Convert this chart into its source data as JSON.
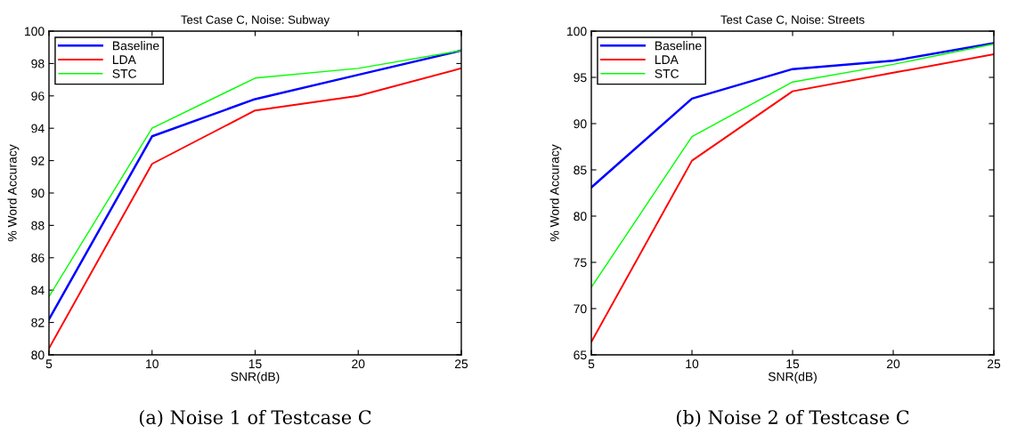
{
  "chart_data": [
    {
      "type": "line",
      "title": "Test Case C, Noise: Subway",
      "xlabel": "SNR(dB)",
      "ylabel": "% Word Accuracy",
      "x": [
        5,
        10,
        15,
        20,
        25
      ],
      "xlim": [
        5,
        25
      ],
      "xticks": [
        5,
        10,
        15,
        20,
        25
      ],
      "ylim": [
        80,
        100
      ],
      "yticks": [
        80,
        82,
        84,
        86,
        88,
        90,
        92,
        94,
        96,
        98,
        100
      ],
      "legend": "top left",
      "grid": false,
      "annotations": [
        "(a) Noise 1 of Testcase C"
      ],
      "series": [
        {
          "name": "Baseline",
          "color": "#0000ff",
          "values": [
            82.2,
            93.5,
            95.8,
            97.3,
            98.8
          ]
        },
        {
          "name": "LDA",
          "color": "#ff0000",
          "values": [
            80.4,
            91.8,
            95.1,
            96.0,
            97.7
          ]
        },
        {
          "name": "STC",
          "color": "#00ff00",
          "values": [
            83.6,
            94.0,
            97.1,
            97.7,
            98.8
          ]
        }
      ]
    },
    {
      "type": "line",
      "title": "Test Case C, Noise: Streets",
      "xlabel": "SNR(dB)",
      "ylabel": "% Word Accuracy",
      "x": [
        5,
        10,
        15,
        20,
        25
      ],
      "xlim": [
        5,
        25
      ],
      "xticks": [
        5,
        10,
        15,
        20,
        25
      ],
      "ylim": [
        65,
        100
      ],
      "yticks": [
        65,
        70,
        75,
        80,
        85,
        90,
        95,
        100
      ],
      "legend": "top left",
      "grid": false,
      "annotations": [
        "(b) Noise 2 of Testcase C"
      ],
      "series": [
        {
          "name": "Baseline",
          "color": "#0000ff",
          "values": [
            83.1,
            92.7,
            95.9,
            96.8,
            98.7
          ]
        },
        {
          "name": "LDA",
          "color": "#ff0000",
          "values": [
            66.4,
            86.0,
            93.5,
            95.5,
            97.5
          ]
        },
        {
          "name": "STC",
          "color": "#00ff00",
          "values": [
            72.3,
            88.6,
            94.5,
            96.4,
            98.6
          ]
        }
      ]
    }
  ]
}
